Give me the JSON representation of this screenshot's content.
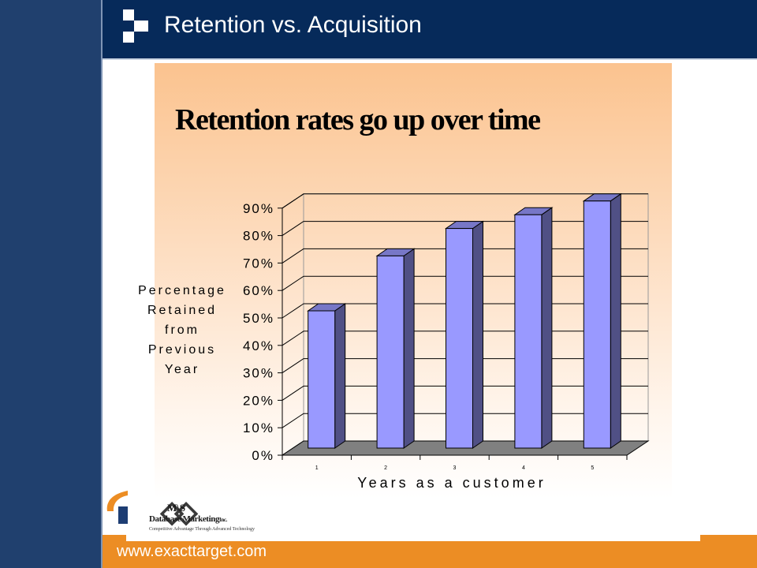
{
  "slide": {
    "title": "Retention vs. Acquisition",
    "footer_url": "www.exacttarget.com"
  },
  "logos": {
    "ms_name": "M\\S",
    "ms_subtitle": "Database Marketing",
    "ms_inc": "Inc.",
    "ms_tagline": "Competitive Advantage Through Advanced Technology"
  },
  "colors": {
    "sidebar": "#20406e",
    "header": "#062a5a",
    "accent_orange": "#ec8d24",
    "bar_fill": "#9999ff",
    "floor": "#808080"
  },
  "chart_data": {
    "type": "bar",
    "title": "Retention rates go up over time",
    "categories": [
      "1",
      "2",
      "3",
      "4",
      "5"
    ],
    "values": [
      50,
      70,
      80,
      85,
      90
    ],
    "ylim": [
      0,
      90
    ],
    "yticks": [
      "0%",
      "10%",
      "20%",
      "30%",
      "40%",
      "50%",
      "60%",
      "70%",
      "80%",
      "90%"
    ],
    "xlabel": "Years as a customer",
    "ylabel_lines": [
      "Percentage",
      "Retained",
      "from",
      "Previous",
      "Year"
    ],
    "grid": true,
    "style": "3d",
    "legend": "none"
  }
}
